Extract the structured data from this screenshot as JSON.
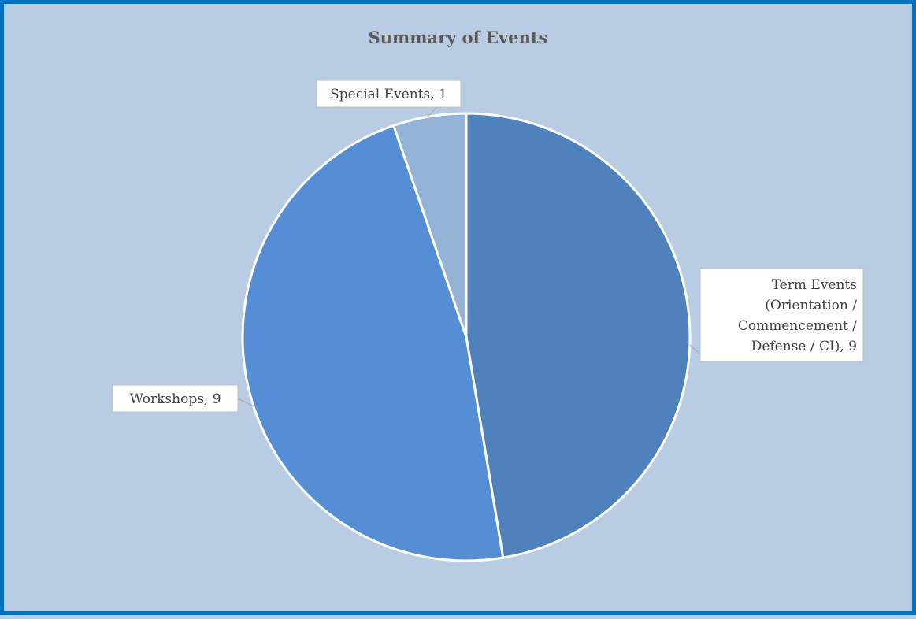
{
  "chart_data": {
    "type": "pie",
    "title": "Summary of Events",
    "slices": [
      {
        "name": "Term Events (Orientation / Commencement / Defense / CI)",
        "value": 9,
        "label_lines": [
          "Term Events",
          "(Orientation /",
          "Commencement /",
          "Defense / CI), 9"
        ],
        "color": "#4f81bd"
      },
      {
        "name": "Workshops",
        "value": 9,
        "label_lines": [
          "Workshops, 9"
        ],
        "color": "#558ed5"
      },
      {
        "name": "Special Events",
        "value": 1,
        "label_lines": [
          "Special Events, 1"
        ],
        "color": "#95b3d7"
      }
    ],
    "start_angle": "12 o'clock",
    "direction": "clockwise",
    "legend": "none",
    "background": "#b8cce4",
    "border_color": "#0070c0"
  }
}
